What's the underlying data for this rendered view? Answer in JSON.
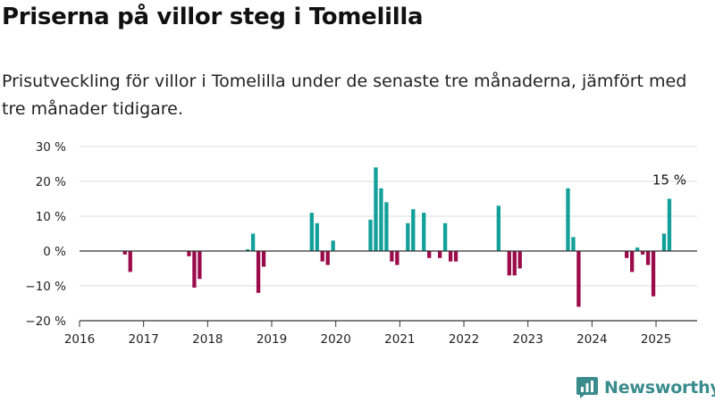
{
  "header": {
    "title": "Priserna på villor steg i Tomelilla",
    "subtitle": "Prisutveckling för villor i Tomelilla under de senaste tre månaderna, jämfört med tre månader tidigare."
  },
  "brand": {
    "name": "Newsworthy",
    "logo_icon": "bar-chart-logo-icon",
    "color": "#3a8b8c"
  },
  "chart_data": {
    "type": "bar",
    "title": "Priserna på villor steg i Tomelilla",
    "subtitle": "Prisutveckling för villor i Tomelilla under de senaste tre månaderna, jämfört med tre månader tidigare.",
    "xlabel": "",
    "ylabel": "",
    "ylim": [
      -20,
      30
    ],
    "xlim": [
      "2016-01",
      "2025-08"
    ],
    "y_ticks": [
      30,
      20,
      10,
      0,
      -10,
      -20
    ],
    "y_tick_labels": [
      "30 %",
      "20 %",
      "10 %",
      "0 %",
      "−10 %",
      "−20 %"
    ],
    "x_ticks": [
      "2016",
      "2017",
      "2018",
      "2019",
      "2020",
      "2021",
      "2022",
      "2023",
      "2024",
      "2025"
    ],
    "grid": "horizontal",
    "positive_color": "#12a09a",
    "negative_color": "#9b0a4a",
    "annotation": {
      "month": "2025-03",
      "label": "15 %"
    },
    "points": [
      {
        "month": "2016-09",
        "value": -1
      },
      {
        "month": "2016-10",
        "value": -6
      },
      {
        "month": "2017-09",
        "value": -1.5
      },
      {
        "month": "2017-10",
        "value": -10.5
      },
      {
        "month": "2017-11",
        "value": -8
      },
      {
        "month": "2018-08",
        "value": 0.5
      },
      {
        "month": "2018-09",
        "value": 5
      },
      {
        "month": "2018-10",
        "value": -12
      },
      {
        "month": "2018-11",
        "value": -4.5
      },
      {
        "month": "2019-08",
        "value": 11
      },
      {
        "month": "2019-09",
        "value": 8
      },
      {
        "month": "2019-10",
        "value": -3
      },
      {
        "month": "2019-11",
        "value": -4
      },
      {
        "month": "2019-12",
        "value": 3
      },
      {
        "month": "2020-07",
        "value": 9
      },
      {
        "month": "2020-08",
        "value": 24
      },
      {
        "month": "2020-09",
        "value": 18
      },
      {
        "month": "2020-10",
        "value": 14
      },
      {
        "month": "2020-11",
        "value": -3
      },
      {
        "month": "2020-12",
        "value": -4
      },
      {
        "month": "2021-02",
        "value": 8
      },
      {
        "month": "2021-03",
        "value": 12
      },
      {
        "month": "2021-05",
        "value": 11
      },
      {
        "month": "2021-06",
        "value": -2
      },
      {
        "month": "2021-08",
        "value": -2
      },
      {
        "month": "2021-09",
        "value": 8
      },
      {
        "month": "2021-10",
        "value": -3
      },
      {
        "month": "2021-11",
        "value": -3
      },
      {
        "month": "2022-07",
        "value": 13
      },
      {
        "month": "2022-09",
        "value": -7
      },
      {
        "month": "2022-10",
        "value": -7
      },
      {
        "month": "2022-11",
        "value": -5
      },
      {
        "month": "2023-08",
        "value": 18
      },
      {
        "month": "2023-09",
        "value": 4
      },
      {
        "month": "2023-10",
        "value": -16
      },
      {
        "month": "2024-07",
        "value": -2
      },
      {
        "month": "2024-08",
        "value": -6
      },
      {
        "month": "2024-09",
        "value": 1
      },
      {
        "month": "2024-10",
        "value": -1
      },
      {
        "month": "2024-11",
        "value": -4
      },
      {
        "month": "2024-12",
        "value": -13
      },
      {
        "month": "2025-02",
        "value": 5
      },
      {
        "month": "2025-03",
        "value": 15
      }
    ]
  }
}
